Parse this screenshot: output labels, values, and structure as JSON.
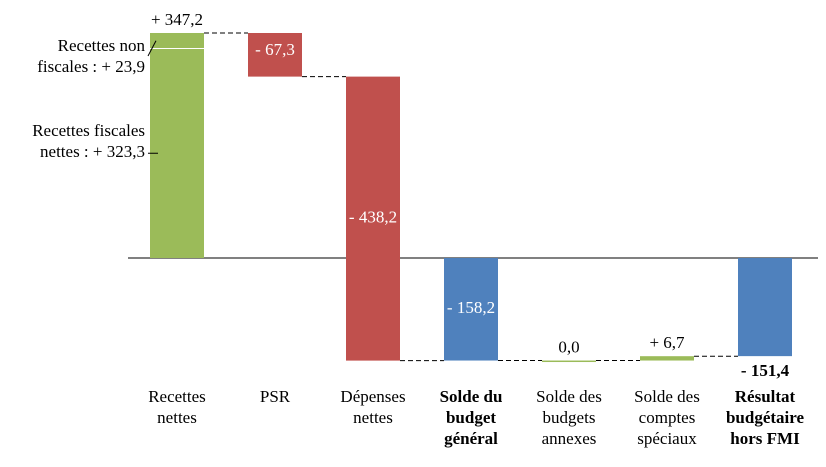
{
  "chart_data": {
    "type": "waterfall",
    "categories": [
      "Recettes nettes",
      "PSR",
      "Dépenses nettes",
      "Solde du budget général",
      "Solde des budgets annexes",
      "Solde des comptes spéciaux",
      "Résultat budgétaire hors FMI"
    ],
    "values": [
      347.2,
      -67.3,
      -438.2,
      -158.2,
      0.0,
      6.7,
      -151.4
    ],
    "value_labels": [
      "+ 347,2",
      "- 67,3",
      "- 438,2",
      "- 158,2",
      "0,0",
      "+ 6,7",
      "- 151,4"
    ],
    "totals": [
      false,
      false,
      false,
      true,
      false,
      false,
      true
    ],
    "colors": {
      "increase": "#9bbb59",
      "decrease": "#c0504d",
      "total": "#4f81bd"
    },
    "components": {
      "labels": [
        "Recettes fiscales nettes : + 323,3",
        "Recettes non fiscales : + 23,9"
      ],
      "values": [
        323.3,
        23.9
      ]
    },
    "ylim": [
      -160,
      360
    ]
  }
}
